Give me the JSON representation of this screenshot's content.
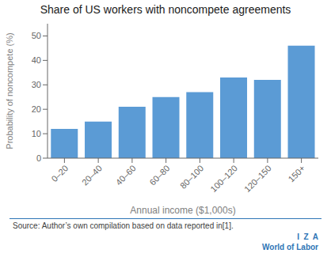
{
  "chart_data": {
    "type": "bar",
    "title": "Share of US workers with noncompete agreements",
    "categories": [
      "0–20",
      "20–40",
      "40–60",
      "60–80",
      "80–100",
      "100–120",
      "120–150",
      "150+"
    ],
    "values": [
      12,
      15,
      21,
      25,
      27,
      33,
      32,
      46
    ],
    "color": "#5b9bd5",
    "xlabel": "Annual income ($1,000s)",
    "ylabel": "Probability of noncompete (%)",
    "ylim": [
      0,
      55
    ],
    "yticks": [
      0,
      10,
      20,
      30,
      40,
      50
    ],
    "grid": false,
    "annotations": [
      "Source: Author’s own compilation based on data reported in[1].",
      "I  Z  A",
      "World of Labor"
    ]
  }
}
